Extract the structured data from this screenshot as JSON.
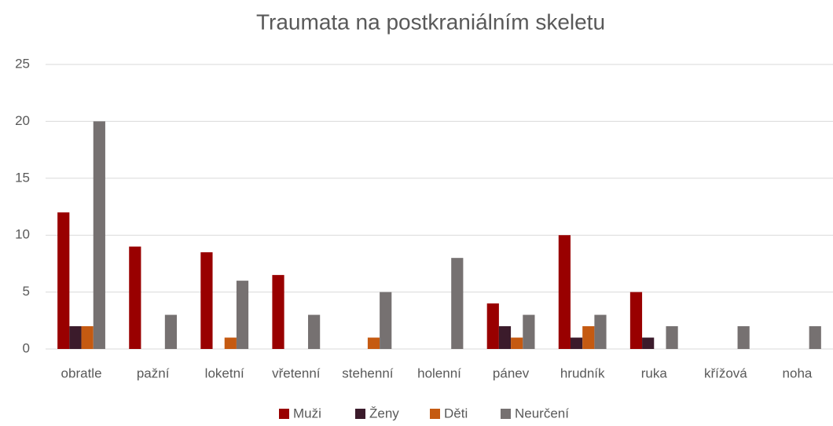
{
  "chart_data": {
    "type": "bar",
    "title": "Traumata na postkraniálním skeletu",
    "categories": [
      "obratle",
      "pažní",
      "loketní",
      "vřetenní",
      "stehenní",
      "holenní",
      "pánev",
      "hrudník",
      "ruka",
      "křížová",
      "noha"
    ],
    "series": [
      {
        "name": "Muži",
        "color": "#990000",
        "values": [
          12,
          9,
          8.5,
          6.5,
          0,
          0,
          4,
          10,
          5,
          0,
          0
        ]
      },
      {
        "name": "Ženy",
        "color": "#3b1b2b",
        "values": [
          2,
          0,
          0,
          0,
          0,
          0,
          2,
          1,
          1,
          0,
          0
        ]
      },
      {
        "name": "Děti",
        "color": "#c55a11",
        "values": [
          2,
          0,
          1,
          0,
          1,
          0,
          1,
          2,
          0,
          0,
          0
        ]
      },
      {
        "name": "Neurčení",
        "color": "#767171",
        "values": [
          20,
          3,
          6,
          3,
          5,
          8,
          3,
          3,
          2,
          2,
          2
        ]
      }
    ],
    "ylim": [
      0,
      25
    ],
    "yticks": [
      0,
      5,
      10,
      15,
      20,
      25
    ],
    "grid": true,
    "legend": "bottom"
  }
}
